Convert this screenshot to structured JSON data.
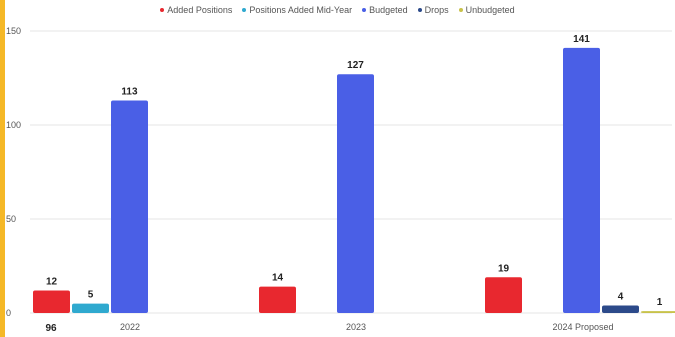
{
  "colors": {
    "accent": "#f5b827",
    "added": "#e8282f",
    "midyear": "#2fa9cf",
    "budgeted": "#4a5fe6",
    "drops": "#2c4a8a",
    "unbudgeted": "#c8c24a",
    "grid": "#e6e6e6",
    "axis_text": "#555555",
    "label_text": "#222222"
  },
  "chart_data": {
    "type": "bar",
    "title": "",
    "xlabel": "",
    "ylabel": "",
    "ylim": [
      0,
      150
    ],
    "yticks": [
      0,
      50,
      100,
      150
    ],
    "grid": true,
    "legend_position": "top",
    "categories": [
      "2022",
      "2023",
      "2024 Proposed"
    ],
    "series": [
      {
        "name": "Added Positions",
        "color_key": "added",
        "values": [
          12,
          14,
          19
        ]
      },
      {
        "name": "Positions Added Mid-Year",
        "color_key": "midyear",
        "values": [
          5,
          0,
          0
        ]
      },
      {
        "name": "Budgeted",
        "color_key": "budgeted",
        "values": [
          113,
          127,
          141
        ]
      },
      {
        "name": "Drops",
        "color_key": "drops",
        "values": [
          0,
          0,
          4
        ]
      },
      {
        "name": "Unbudgeted",
        "color_key": "unbudgeted",
        "values": [
          0,
          0,
          1
        ]
      }
    ],
    "data_labels": [
      {
        "series": 0,
        "category": 0,
        "text": "12"
      },
      {
        "series": 1,
        "category": 0,
        "text": "5"
      },
      {
        "series": 2,
        "category": 0,
        "text": "113"
      },
      {
        "series": 0,
        "category": 1,
        "text": "14"
      },
      {
        "series": 2,
        "category": 1,
        "text": "127"
      },
      {
        "series": 0,
        "category": 2,
        "text": "19"
      },
      {
        "series": 2,
        "category": 2,
        "text": "141"
      },
      {
        "series": 3,
        "category": 2,
        "text": "4"
      },
      {
        "series": 4,
        "category": 2,
        "text": "1"
      }
    ],
    "extra_label": "96"
  }
}
